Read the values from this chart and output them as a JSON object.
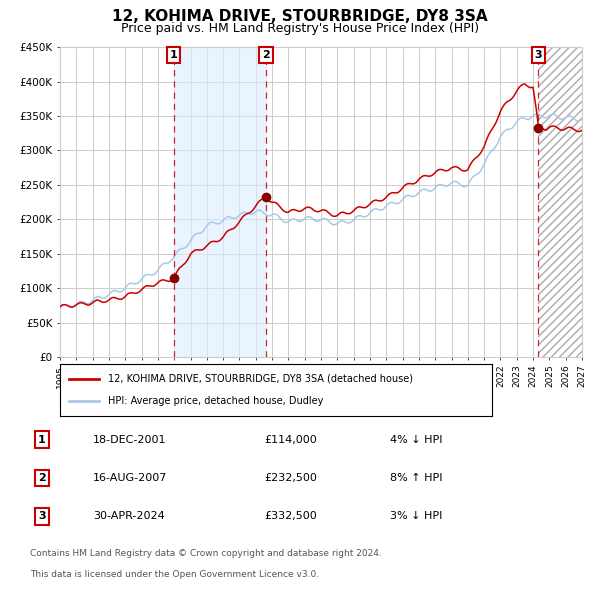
{
  "title": "12, KOHIMA DRIVE, STOURBRIDGE, DY8 3SA",
  "subtitle": "Price paid vs. HM Land Registry's House Price Index (HPI)",
  "title_fontsize": 11,
  "subtitle_fontsize": 9,
  "background_color": "#ffffff",
  "plot_bg_color": "#ffffff",
  "grid_color": "#cccccc",
  "hpi_line_color": "#a8c8e8",
  "price_line_color": "#cc0000",
  "sale_marker_color": "#880000",
  "sale1_date": 2001.96,
  "sale1_price": 114000,
  "sale2_date": 2007.62,
  "sale2_price": 232500,
  "sale3_date": 2024.33,
  "sale3_price": 332500,
  "xmin": 1995,
  "xmax": 2027,
  "ymin": 0,
  "ymax": 450000,
  "yticks": [
    0,
    50000,
    100000,
    150000,
    200000,
    250000,
    300000,
    350000,
    400000,
    450000
  ],
  "ytick_labels": [
    "£0",
    "£50K",
    "£100K",
    "£150K",
    "£200K",
    "£250K",
    "£300K",
    "£350K",
    "£400K",
    "£450K"
  ],
  "xtick_years": [
    1995,
    1996,
    1997,
    1998,
    1999,
    2000,
    2001,
    2002,
    2003,
    2004,
    2005,
    2006,
    2007,
    2008,
    2009,
    2010,
    2011,
    2012,
    2013,
    2014,
    2015,
    2016,
    2017,
    2018,
    2019,
    2020,
    2021,
    2022,
    2023,
    2024,
    2025,
    2026,
    2027
  ],
  "legend_house_label": "12, KOHIMA DRIVE, STOURBRIDGE, DY8 3SA (detached house)",
  "legend_hpi_label": "HPI: Average price, detached house, Dudley",
  "sale1_label": "18-DEC-2001",
  "sale1_amount": "£114,000",
  "sale1_hpi": "4% ↓ HPI",
  "sale2_label": "16-AUG-2007",
  "sale2_amount": "£232,500",
  "sale2_hpi": "8% ↑ HPI",
  "sale3_label": "30-APR-2024",
  "sale3_amount": "£332,500",
  "sale3_hpi": "3% ↓ HPI",
  "footer1": "Contains HM Land Registry data © Crown copyright and database right 2024.",
  "footer2": "This data is licensed under the Open Government Licence v3.0.",
  "hatch_color": "#aaaaaa",
  "shade_between_color": "#ddeeff"
}
